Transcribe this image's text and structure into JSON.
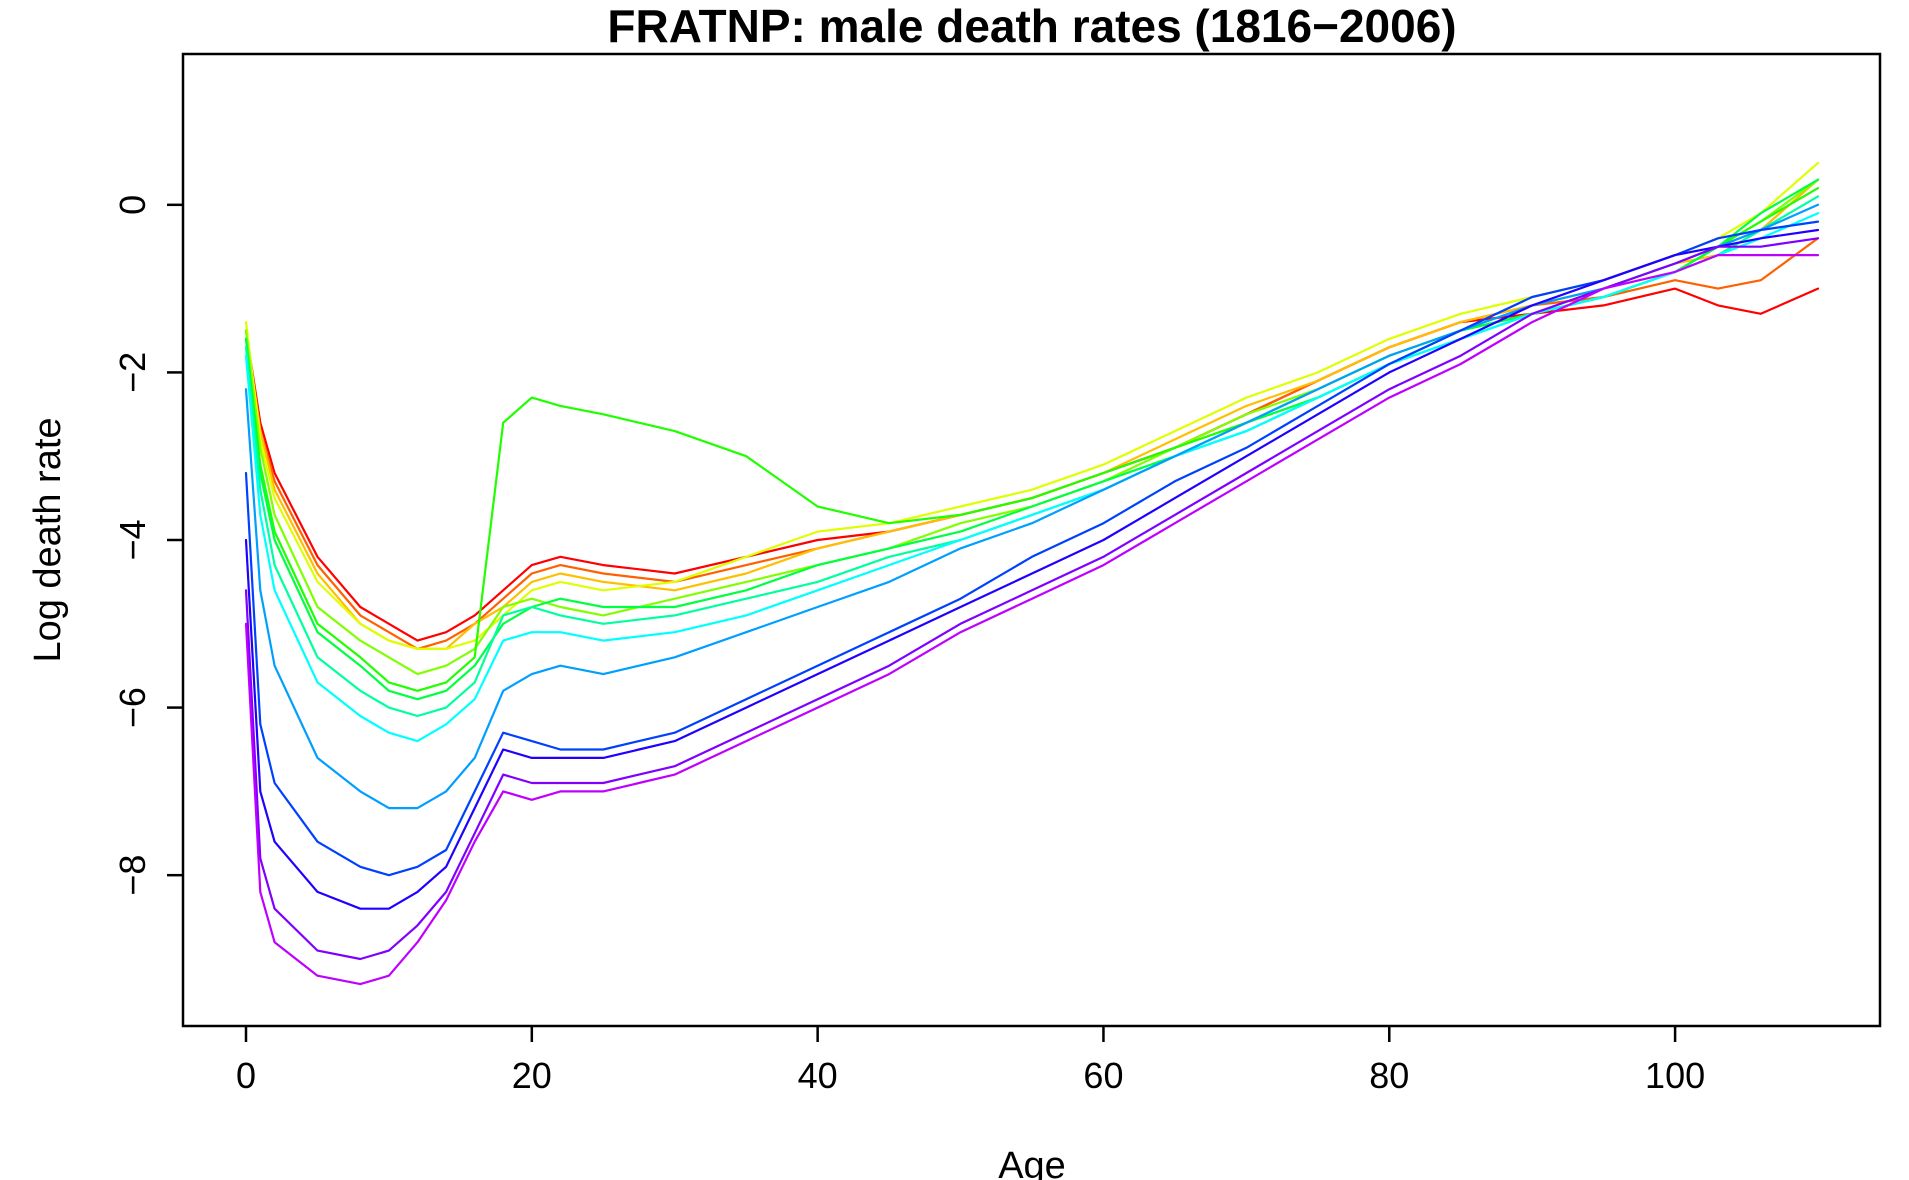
{
  "chart_data": {
    "type": "line",
    "title": "FRATNP: male death rates  (1816−2006)",
    "xlabel": "Age",
    "ylabel": "Log death rate",
    "xlim": [
      0,
      110
    ],
    "ylim": [
      -9.8,
      1.8
    ],
    "xticks": [
      0,
      20,
      40,
      60,
      80,
      100
    ],
    "yticks": [
      0,
      -2,
      -4,
      -6,
      -8
    ],
    "xtick_labels": [
      "0",
      "20",
      "40",
      "60",
      "80",
      "100"
    ],
    "ytick_labels": [
      "0",
      "−2",
      "−4",
      "−6",
      "−8"
    ],
    "grid": false,
    "legend": "none",
    "color_scale": "rainbow red (earliest year) to violet (latest year)",
    "years": [
      1816,
      2006
    ],
    "x": [
      0,
      1,
      2,
      5,
      8,
      10,
      12,
      14,
      16,
      18,
      20,
      22,
      25,
      30,
      35,
      40,
      45,
      50,
      55,
      60,
      65,
      70,
      75,
      80,
      85,
      90,
      95,
      100,
      103,
      106,
      110
    ],
    "series": [
      {
        "color": "#ff0000",
        "values": [
          -1.5,
          -2.6,
          -3.2,
          -4.2,
          -4.8,
          -5.0,
          -5.2,
          -5.1,
          -4.9,
          -4.6,
          -4.3,
          -4.2,
          -4.3,
          -4.4,
          -4.2,
          -4.0,
          -3.9,
          -3.7,
          -3.5,
          -3.2,
          -2.9,
          -2.5,
          -2.1,
          -1.7,
          -1.4,
          -1.3,
          -1.2,
          -1.0,
          -1.2,
          -1.3,
          -1.0
        ]
      },
      {
        "color": "#ff6000",
        "values": [
          -1.5,
          -2.7,
          -3.3,
          -4.3,
          -4.9,
          -5.1,
          -5.3,
          -5.2,
          -5.0,
          -4.7,
          -4.4,
          -4.3,
          -4.4,
          -4.5,
          -4.3,
          -4.1,
          -3.9,
          -3.7,
          -3.5,
          -3.2,
          -2.9,
          -2.5,
          -2.1,
          -1.7,
          -1.4,
          -1.2,
          -1.1,
          -0.9,
          -1.0,
          -0.9,
          -0.4
        ]
      },
      {
        "color": "#ffbf00",
        "values": [
          -1.5,
          -2.7,
          -3.4,
          -4.4,
          -5.0,
          -5.2,
          -5.3,
          -5.3,
          -5.0,
          -4.8,
          -4.5,
          -4.4,
          -4.5,
          -4.6,
          -4.4,
          -4.1,
          -3.9,
          -3.7,
          -3.5,
          -3.2,
          -2.8,
          -2.4,
          -2.1,
          -1.7,
          -1.4,
          -1.2,
          -1.0,
          -0.7,
          -0.6,
          -0.3,
          0.3
        ]
      },
      {
        "color": "#dfff00",
        "values": [
          -1.4,
          -2.8,
          -3.5,
          -4.5,
          -5.0,
          -5.2,
          -5.3,
          -5.3,
          -5.2,
          -4.9,
          -4.6,
          -4.5,
          -4.6,
          -4.5,
          -4.2,
          -3.9,
          -3.8,
          -3.6,
          -3.4,
          -3.1,
          -2.7,
          -2.3,
          -2.0,
          -1.6,
          -1.3,
          -1.1,
          -0.9,
          -0.6,
          -0.4,
          -0.1,
          0.5
        ]
      },
      {
        "color": "#80ff00",
        "values": [
          -1.5,
          -2.9,
          -3.7,
          -4.8,
          -5.2,
          -5.4,
          -5.6,
          -5.5,
          -5.3,
          -4.8,
          -4.7,
          -4.8,
          -4.9,
          -4.7,
          -4.5,
          -4.3,
          -4.1,
          -3.8,
          -3.6,
          -3.3,
          -2.9,
          -2.5,
          -2.2,
          -1.8,
          -1.5,
          -1.3,
          -1.1,
          -0.8,
          -0.5,
          -0.2,
          0.3
        ]
      },
      {
        "color": "#20ff00",
        "values": [
          -1.6,
          -3.1,
          -3.9,
          -5.0,
          -5.4,
          -5.7,
          -5.8,
          -5.7,
          -5.4,
          -2.6,
          -2.3,
          -2.4,
          -2.5,
          -2.7,
          -3.0,
          -3.6,
          -3.8,
          -3.7,
          -3.5,
          -3.2,
          -2.9,
          -2.6,
          -2.2,
          -1.8,
          -1.5,
          -1.3,
          -1.1,
          -0.8,
          -0.5,
          -0.2,
          0.2
        ]
      },
      {
        "color": "#00ff40",
        "values": [
          -1.6,
          -3.2,
          -4.0,
          -5.1,
          -5.5,
          -5.8,
          -5.9,
          -5.8,
          -5.5,
          -5.0,
          -4.8,
          -4.7,
          -4.8,
          -4.8,
          -4.6,
          -4.3,
          -4.1,
          -3.9,
          -3.6,
          -3.3,
          -3.0,
          -2.6,
          -2.3,
          -1.9,
          -1.5,
          -1.3,
          -1.1,
          -0.8,
          -0.5,
          -0.1,
          0.3
        ]
      },
      {
        "color": "#00ff9f",
        "values": [
          -1.7,
          -3.4,
          -4.3,
          -5.4,
          -5.8,
          -6.0,
          -6.1,
          -6.0,
          -5.7,
          -4.9,
          -4.8,
          -4.9,
          -5.0,
          -4.9,
          -4.7,
          -4.5,
          -4.2,
          -4.0,
          -3.7,
          -3.4,
          -3.0,
          -2.7,
          -2.3,
          -1.9,
          -1.6,
          -1.3,
          -1.1,
          -0.8,
          -0.6,
          -0.3,
          0.1
        ]
      },
      {
        "color": "#00ffff",
        "values": [
          -1.8,
          -3.7,
          -4.6,
          -5.7,
          -6.1,
          -6.3,
          -6.4,
          -6.2,
          -5.9,
          -5.2,
          -5.1,
          -5.1,
          -5.2,
          -5.1,
          -4.9,
          -4.6,
          -4.3,
          -4.0,
          -3.7,
          -3.4,
          -3.0,
          -2.7,
          -2.3,
          -1.9,
          -1.6,
          -1.3,
          -1.1,
          -0.8,
          -0.6,
          -0.4,
          -0.1
        ]
      },
      {
        "color": "#009fff",
        "values": [
          -2.2,
          -4.6,
          -5.5,
          -6.6,
          -7.0,
          -7.2,
          -7.2,
          -7.0,
          -6.6,
          -5.8,
          -5.6,
          -5.5,
          -5.6,
          -5.4,
          -5.1,
          -4.8,
          -4.5,
          -4.1,
          -3.8,
          -3.4,
          -3.0,
          -2.6,
          -2.2,
          -1.8,
          -1.5,
          -1.2,
          -1.0,
          -0.7,
          -0.5,
          -0.3,
          0.0
        ]
      },
      {
        "color": "#0040ff",
        "values": [
          -3.2,
          -6.2,
          -6.9,
          -7.6,
          -7.9,
          -8.0,
          -7.9,
          -7.7,
          -7.0,
          -6.3,
          -6.4,
          -6.5,
          -6.5,
          -6.3,
          -5.9,
          -5.5,
          -5.1,
          -4.7,
          -4.2,
          -3.8,
          -3.3,
          -2.9,
          -2.4,
          -1.9,
          -1.5,
          -1.1,
          -0.9,
          -0.6,
          -0.4,
          -0.3,
          -0.2
        ]
      },
      {
        "color": "#2000ff",
        "values": [
          -4.0,
          -7.0,
          -7.6,
          -8.2,
          -8.4,
          -8.4,
          -8.2,
          -7.9,
          -7.2,
          -6.5,
          -6.6,
          -6.6,
          -6.6,
          -6.4,
          -6.0,
          -5.6,
          -5.2,
          -4.8,
          -4.4,
          -4.0,
          -3.5,
          -3.0,
          -2.5,
          -2.0,
          -1.6,
          -1.2,
          -0.9,
          -0.6,
          -0.5,
          -0.4,
          -0.3
        ]
      },
      {
        "color": "#7f00ff",
        "values": [
          -4.6,
          -7.8,
          -8.4,
          -8.9,
          -9.0,
          -8.9,
          -8.6,
          -8.2,
          -7.5,
          -6.8,
          -6.9,
          -6.9,
          -6.9,
          -6.7,
          -6.3,
          -5.9,
          -5.5,
          -5.0,
          -4.6,
          -4.2,
          -3.7,
          -3.2,
          -2.7,
          -2.2,
          -1.8,
          -1.3,
          -1.0,
          -0.7,
          -0.5,
          -0.5,
          -0.4
        ]
      },
      {
        "color": "#bf00ff",
        "values": [
          -5.0,
          -8.2,
          -8.8,
          -9.2,
          -9.3,
          -9.2,
          -8.8,
          -8.3,
          -7.6,
          -7.0,
          -7.1,
          -7.0,
          -7.0,
          -6.8,
          -6.4,
          -6.0,
          -5.6,
          -5.1,
          -4.7,
          -4.3,
          -3.8,
          -3.3,
          -2.8,
          -2.3,
          -1.9,
          -1.4,
          -1.0,
          -0.8,
          -0.6,
          -0.6,
          -0.6
        ]
      }
    ]
  }
}
